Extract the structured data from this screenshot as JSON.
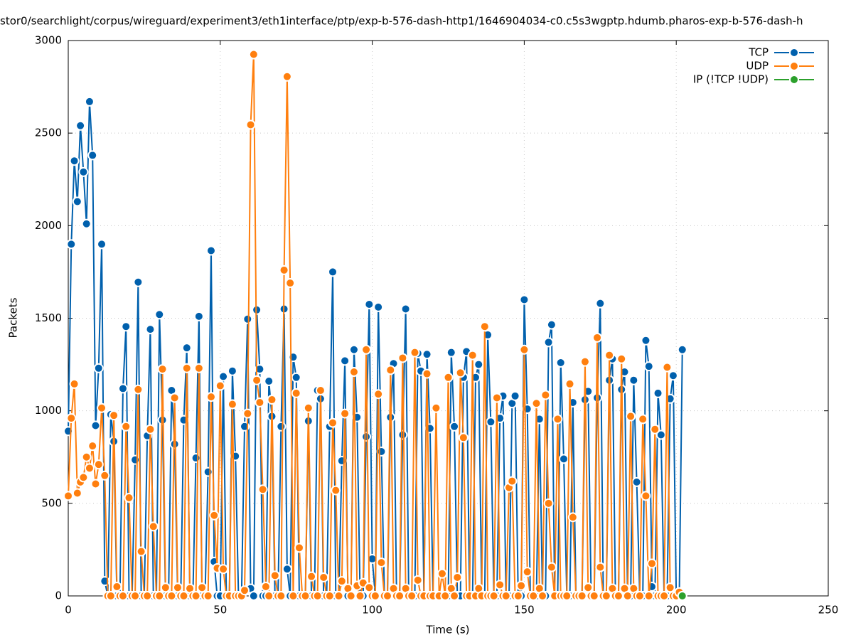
{
  "chart_data": {
    "type": "line",
    "title": "stor0/searchlight/corpus/wireguard/experiment3/eth1interface/ptp/exp-b-576-dash-http1/1646904034-c0.c5s3wgptp.hdumb.pharos-exp-b-576-dash-h",
    "x_label": "Time (s)",
    "y_label": "Packets",
    "xlim": [
      0,
      250
    ],
    "xticks": [
      0,
      50,
      100,
      150,
      200,
      250
    ],
    "ylim": [
      0,
      3000
    ],
    "yticks": [
      0,
      500,
      1000,
      1500,
      2000,
      2500,
      3000
    ],
    "grid": true,
    "legend": "top-right",
    "x": [
      0,
      1,
      2,
      3,
      4,
      5,
      6,
      7,
      8,
      9,
      10,
      11,
      12,
      13,
      14,
      15,
      16,
      17,
      18,
      19,
      20,
      21,
      22,
      23,
      24,
      25,
      26,
      27,
      28,
      29,
      30,
      31,
      32,
      33,
      34,
      35,
      36,
      37,
      38,
      39,
      40,
      41,
      42,
      43,
      44,
      45,
      46,
      47,
      48,
      49,
      50,
      51,
      52,
      53,
      54,
      55,
      56,
      57,
      58,
      59,
      60,
      61,
      62,
      63,
      64,
      65,
      66,
      67,
      68,
      69,
      70,
      71,
      72,
      73,
      74,
      75,
      76,
      77,
      78,
      79,
      80,
      81,
      82,
      83,
      84,
      85,
      86,
      87,
      88,
      89,
      90,
      91,
      92,
      93,
      94,
      95,
      96,
      97,
      98,
      99,
      100,
      101,
      102,
      103,
      104,
      105,
      106,
      107,
      108,
      109,
      110,
      111,
      112,
      113,
      114,
      115,
      116,
      117,
      118,
      119,
      120,
      121,
      122,
      123,
      124,
      125,
      126,
      127,
      128,
      129,
      130,
      131,
      132,
      133,
      134,
      135,
      136,
      137,
      138,
      139,
      140,
      141,
      142,
      143,
      144,
      145,
      146,
      147,
      148,
      149,
      150,
      151,
      152,
      153,
      154,
      155,
      156,
      157,
      158,
      159,
      160,
      161,
      162,
      163,
      164,
      165,
      166,
      167,
      168,
      169,
      170,
      171,
      172,
      173,
      174,
      175,
      176,
      177,
      178,
      179,
      180,
      181,
      182,
      183,
      184,
      185,
      186,
      187,
      188,
      189,
      190,
      191,
      192,
      193,
      194,
      195,
      196,
      197,
      198,
      199,
      200,
      201,
      202
    ],
    "series": [
      {
        "name": "TCP",
        "color": "#0060ad",
        "values": [
          890,
          1900,
          2350,
          2130,
          2540,
          2290,
          2010,
          2670,
          2380,
          920,
          1230,
          1900,
          80,
          0,
          980,
          835,
          0,
          0,
          1120,
          1455,
          0,
          0,
          735,
          1695,
          0,
          0,
          865,
          1440,
          0,
          0,
          1520,
          950,
          0,
          0,
          1110,
          820,
          0,
          0,
          950,
          1340,
          0,
          0,
          745,
          1510,
          0,
          0,
          670,
          1865,
          185,
          0,
          0,
          1185,
          0,
          0,
          1215,
          755,
          0,
          0,
          915,
          1495,
          40,
          0,
          1545,
          1225,
          0,
          0,
          1160,
          970,
          0,
          0,
          915,
          1550,
          145,
          0,
          1290,
          1180,
          0,
          0,
          0,
          945,
          0,
          0,
          1110,
          1065,
          0,
          0,
          915,
          1750,
          0,
          0,
          730,
          1270,
          0,
          0,
          1330,
          965,
          0,
          0,
          860,
          1575,
          200,
          0,
          1560,
          780,
          0,
          0,
          965,
          1255,
          0,
          0,
          870,
          1550,
          0,
          0,
          0,
          1310,
          1215,
          0,
          1305,
          905,
          0,
          0,
          0,
          0,
          0,
          0,
          1315,
          915,
          0,
          0,
          1180,
          1320,
          0,
          0,
          1180,
          1250,
          0,
          0,
          1410,
          940,
          0,
          0,
          960,
          1080,
          0,
          0,
          1040,
          1080,
          0,
          0,
          1600,
          1010,
          0,
          0,
          0,
          955,
          0,
          0,
          1370,
          1465,
          0,
          0,
          1260,
          740,
          0,
          0,
          1045,
          0,
          0,
          0,
          1060,
          1105,
          0,
          0,
          1070,
          1580,
          0,
          0,
          1165,
          1280,
          0,
          0,
          1115,
          1210,
          0,
          0,
          1165,
          615,
          0,
          0,
          1380,
          1240,
          50,
          0,
          1095,
          870,
          0,
          0,
          1065,
          1190,
          0,
          0,
          1330
        ]
      },
      {
        "name": "UDP",
        "color": "#ff7f0e",
        "values": [
          540,
          960,
          1145,
          555,
          615,
          640,
          750,
          690,
          810,
          605,
          710,
          1015,
          650,
          0,
          0,
          975,
          50,
          0,
          0,
          915,
          530,
          0,
          0,
          1115,
          240,
          0,
          0,
          900,
          375,
          0,
          0,
          1225,
          45,
          0,
          0,
          1070,
          45,
          0,
          0,
          1230,
          40,
          0,
          0,
          1230,
          45,
          0,
          0,
          1075,
          435,
          150,
          1135,
          145,
          0,
          0,
          1035,
          0,
          0,
          0,
          30,
          985,
          2545,
          2925,
          1165,
          1045,
          575,
          50,
          0,
          1060,
          110,
          0,
          0,
          1760,
          2805,
          1690,
          0,
          1095,
          260,
          0,
          0,
          1015,
          105,
          0,
          0,
          1110,
          100,
          0,
          0,
          935,
          570,
          0,
          80,
          985,
          40,
          0,
          1210,
          55,
          0,
          70,
          1330,
          45,
          0,
          0,
          1090,
          180,
          0,
          0,
          1220,
          40,
          0,
          0,
          1285,
          40,
          0,
          0,
          1315,
          85,
          0,
          0,
          1200,
          0,
          0,
          1015,
          0,
          120,
          0,
          1180,
          40,
          0,
          100,
          1205,
          855,
          0,
          0,
          1300,
          0,
          40,
          0,
          1455,
          0,
          0,
          0,
          1070,
          60,
          0,
          0,
          585,
          620,
          0,
          0,
          55,
          1330,
          130,
          0,
          0,
          1040,
          40,
          0,
          1085,
          500,
          155,
          0,
          955,
          0,
          0,
          0,
          1145,
          425,
          0,
          0,
          0,
          1265,
          45,
          0,
          0,
          1395,
          155,
          0,
          0,
          1300,
          40,
          0,
          0,
          1280,
          40,
          0,
          970,
          40,
          0,
          0,
          955,
          540,
          0,
          175,
          900,
          0,
          0,
          0,
          1235,
          45,
          0,
          0,
          20,
          0
        ]
      },
      {
        "name": "IP (!TCP  !UDP)",
        "color": "#2ca02c",
        "x": [
          202
        ],
        "values": [
          0
        ]
      }
    ]
  }
}
